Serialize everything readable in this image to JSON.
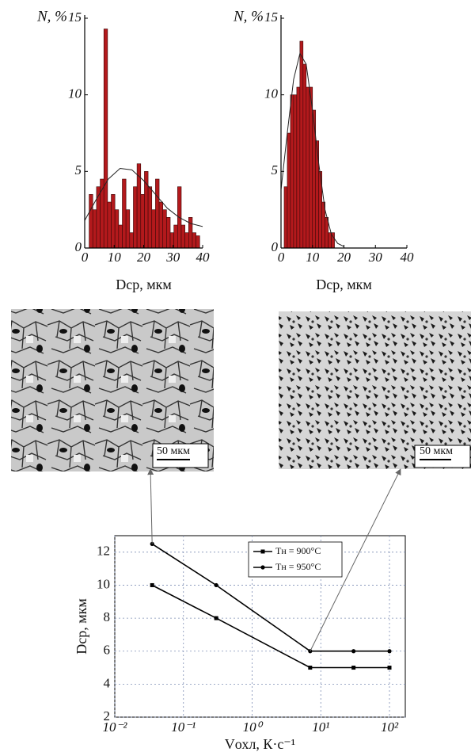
{
  "chart_data": [
    {
      "type": "histogram",
      "y_label": "N, %",
      "x_label": "Dср, мкм",
      "bins": [
        1.5,
        2.75,
        4,
        5.25,
        6.5,
        7.75,
        9,
        10.25,
        11.5,
        12.75,
        14,
        15.25,
        16.5,
        17.75,
        19,
        20.25,
        21.5,
        22.75,
        24,
        25.25,
        26.5,
        27.75,
        29,
        30.25,
        31.5,
        32.75,
        34,
        35.25,
        36.5,
        37.75,
        39
      ],
      "values": [
        3.5,
        2.5,
        4,
        4.5,
        14.3,
        3,
        3.5,
        2.5,
        1.5,
        4.5,
        2.5,
        1,
        4,
        5.5,
        3.5,
        5,
        4,
        2.5,
        4.5,
        3,
        2.5,
        2,
        1,
        1.5,
        4,
        1.5,
        1,
        2,
        1,
        0.8
      ],
      "color": "#b3191c",
      "fit": {
        "x": [
          0,
          4,
          8,
          12,
          16,
          20,
          24,
          28,
          32,
          36,
          40
        ],
        "values": [
          1.8,
          3.2,
          4.5,
          5.2,
          5.1,
          4.4,
          3.5,
          2.6,
          2.0,
          1.6,
          1.4
        ]
      },
      "xlim": [
        0,
        40
      ],
      "xticks": [
        0,
        10,
        20,
        30,
        40
      ],
      "ylim": [
        0,
        15
      ],
      "yticks": [
        0,
        5,
        10,
        15
      ]
    },
    {
      "type": "histogram",
      "y_label": "N, %",
      "x_label": "Dср, мкм",
      "bins": [
        1,
        2,
        3,
        4,
        5,
        6,
        7,
        8,
        9,
        10,
        11,
        12,
        13,
        14,
        15,
        16,
        17
      ],
      "values": [
        4,
        7.5,
        10,
        10,
        10.5,
        13.5,
        12,
        10.5,
        10.5,
        9,
        7,
        5,
        3,
        2,
        1,
        1
      ],
      "color": "#b3191c",
      "fit": {
        "x": [
          0,
          2,
          4,
          6,
          8,
          10,
          12,
          14,
          16,
          18,
          20
        ],
        "values": [
          3.8,
          7.5,
          11,
          12.7,
          12,
          9,
          5.5,
          2.5,
          0.9,
          0.3,
          0.1
        ]
      },
      "xlim": [
        0,
        40
      ],
      "xticks": [
        0,
        10,
        20,
        30,
        40
      ],
      "ylim": [
        0,
        15
      ],
      "yticks": [
        0,
        5,
        10,
        15
      ]
    },
    {
      "type": "line",
      "x_label": "Vохл, К·с⁻¹",
      "y_label": "Dср, мкм",
      "log_x": true,
      "x": [
        0.035,
        0.3,
        7,
        30,
        100
      ],
      "series": [
        {
          "name": "Tн = 900°C",
          "color": "#000000",
          "marker": "square",
          "values": [
            10,
            8,
            5,
            5,
            5
          ]
        },
        {
          "name": "Tн = 950°C",
          "color": "#000000",
          "marker": "circle",
          "values": [
            12.5,
            10,
            6,
            6,
            6
          ]
        }
      ],
      "xlim": [
        0.01,
        170
      ],
      "xticks": [
        {
          "value": 0.01,
          "label": "10⁻²"
        },
        {
          "value": 0.1,
          "label": "10⁻¹"
        },
        {
          "value": 1,
          "label": "10⁰"
        },
        {
          "value": 10,
          "label": "10¹"
        },
        {
          "value": 100,
          "label": "10²"
        }
      ],
      "ylim": [
        2,
        13
      ],
      "yticks": [
        2,
        4,
        6,
        8,
        10,
        12
      ],
      "grid": true,
      "legend": "upper right"
    }
  ],
  "micrographs": [
    {
      "scale_label": "50 мкм"
    },
    {
      "scale_label": "50 мкм"
    }
  ]
}
